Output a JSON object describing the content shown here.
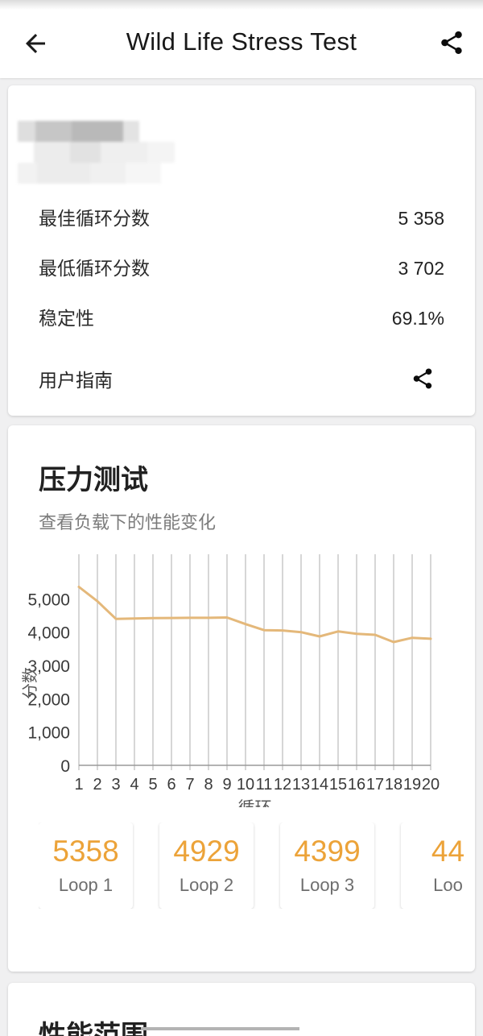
{
  "header": {
    "title": "Wild Life Stress Test"
  },
  "summary_card": {
    "stats": [
      {
        "label": "最佳循环分数",
        "value": "5 358"
      },
      {
        "label": "最低循环分数",
        "value": "3 702"
      },
      {
        "label": "稳定性",
        "value": "69.1%"
      }
    ],
    "user_guide_label": "用户指南"
  },
  "stress_card": {
    "title": "压力测试",
    "subtitle": "查看负载下的性能变化",
    "loops": [
      {
        "value": "5358",
        "label": "Loop 1"
      },
      {
        "value": "4929",
        "label": "Loop 2"
      },
      {
        "value": "4399",
        "label": "Loop 3"
      },
      {
        "value": "44",
        "label": "Loo"
      }
    ]
  },
  "chart_data": {
    "type": "line",
    "title": "压力测试",
    "x": [
      1,
      2,
      3,
      4,
      5,
      6,
      7,
      8,
      9,
      10,
      11,
      12,
      13,
      14,
      15,
      16,
      17,
      18,
      19,
      20
    ],
    "values": [
      5358,
      4929,
      4399,
      4410,
      4420,
      4425,
      4430,
      4430,
      4440,
      4240,
      4060,
      4050,
      4000,
      3870,
      4020,
      3950,
      3920,
      3702,
      3830,
      3800
    ],
    "xlabel": "循环",
    "ylabel": "分数",
    "ylim": [
      0,
      6000
    ],
    "yticks": [
      0,
      1000,
      2000,
      3000,
      4000,
      5000
    ],
    "ytick_labels": [
      "0",
      "1,000",
      "2,000",
      "3,000",
      "4,000",
      "5,000"
    ],
    "grid": "vertical",
    "legend": "none",
    "line_color": "#e4b87a"
  },
  "performance_card": {
    "title": "性能范围"
  },
  "colors": {
    "accent_orange": "#eca339",
    "chart_line": "#e4b87a",
    "gridline": "#bcbcbc",
    "card_bg": "#ffffff",
    "page_bg": "#f0f0f1"
  }
}
